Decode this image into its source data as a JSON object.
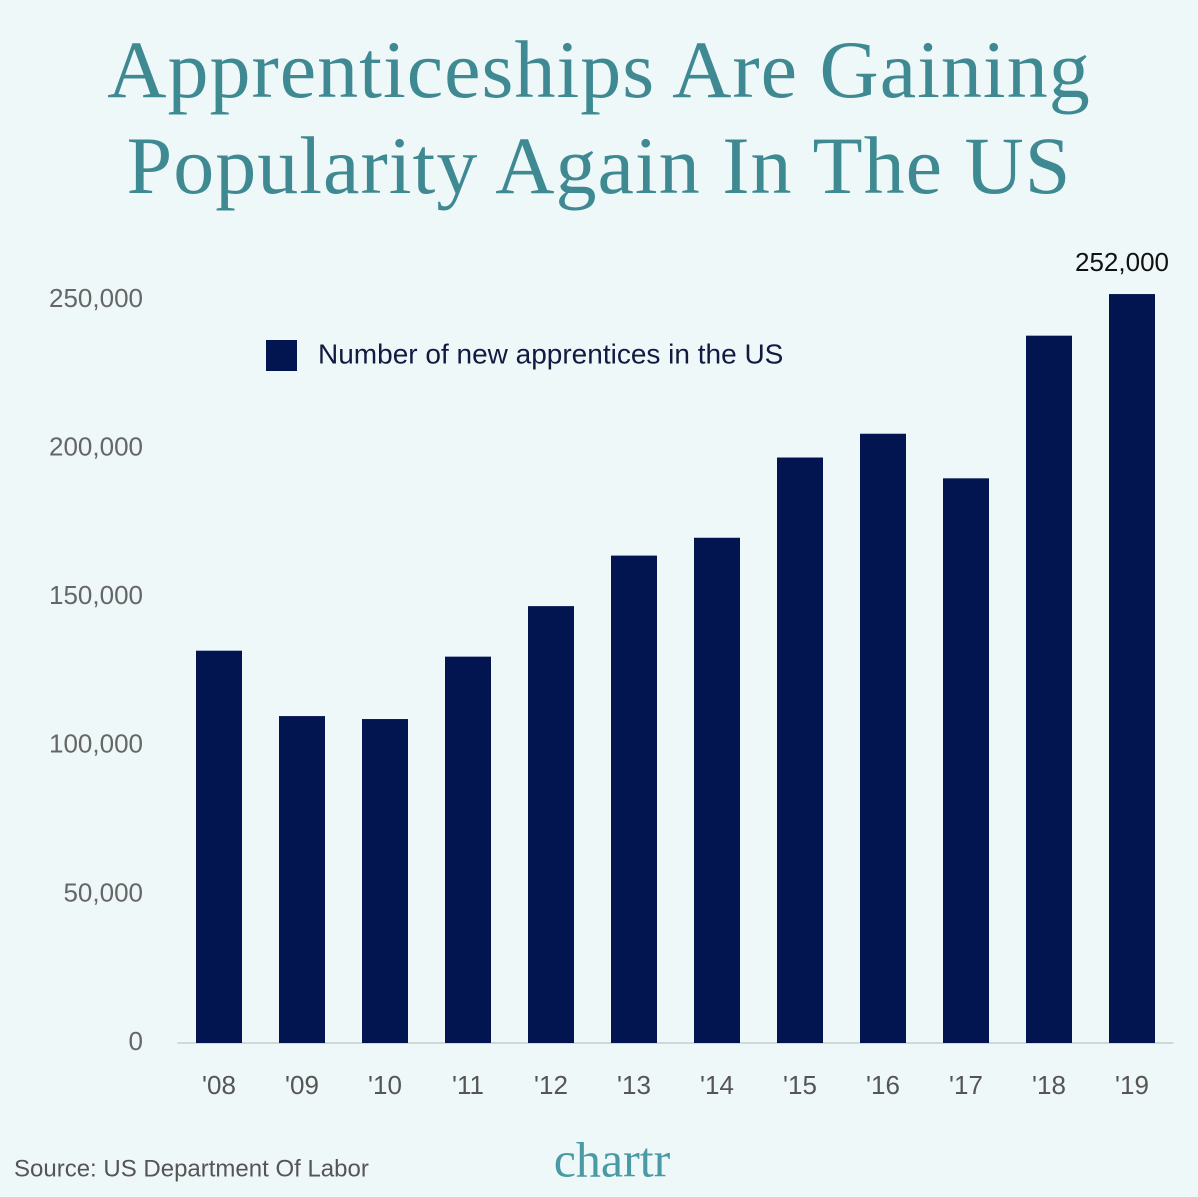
{
  "chart_data": {
    "type": "bar",
    "title": "Apprenticeships Are Gaining Popularity Again In The US",
    "categories": [
      "'08",
      "'09",
      "'10",
      "'11",
      "'12",
      "'13",
      "'14",
      "'15",
      "'16",
      "'17",
      "'18",
      "'19"
    ],
    "series": [
      {
        "name": "Number of new apprentices in the US",
        "color": "#021550",
        "values": [
          132000,
          110000,
          109000,
          130000,
          147000,
          164000,
          170000,
          197000,
          205000,
          190000,
          238000,
          252000
        ],
        "value_labels": [
          null,
          null,
          null,
          null,
          null,
          null,
          null,
          null,
          null,
          null,
          null,
          "252,000"
        ]
      }
    ],
    "ylim": [
      0,
      250000
    ],
    "yticks": [
      0,
      {
        "value": 50000,
        "label": "50,000"
      },
      {
        "value": 100000,
        "label": "100,000"
      },
      {
        "value": 150000,
        "label": "150,000"
      },
      {
        "value": 200000,
        "label": "200,000"
      },
      {
        "value": 250000,
        "label": "250,000"
      }
    ],
    "grid": false,
    "source": "Source: US Department Of Labor",
    "brand": "chartr"
  }
}
